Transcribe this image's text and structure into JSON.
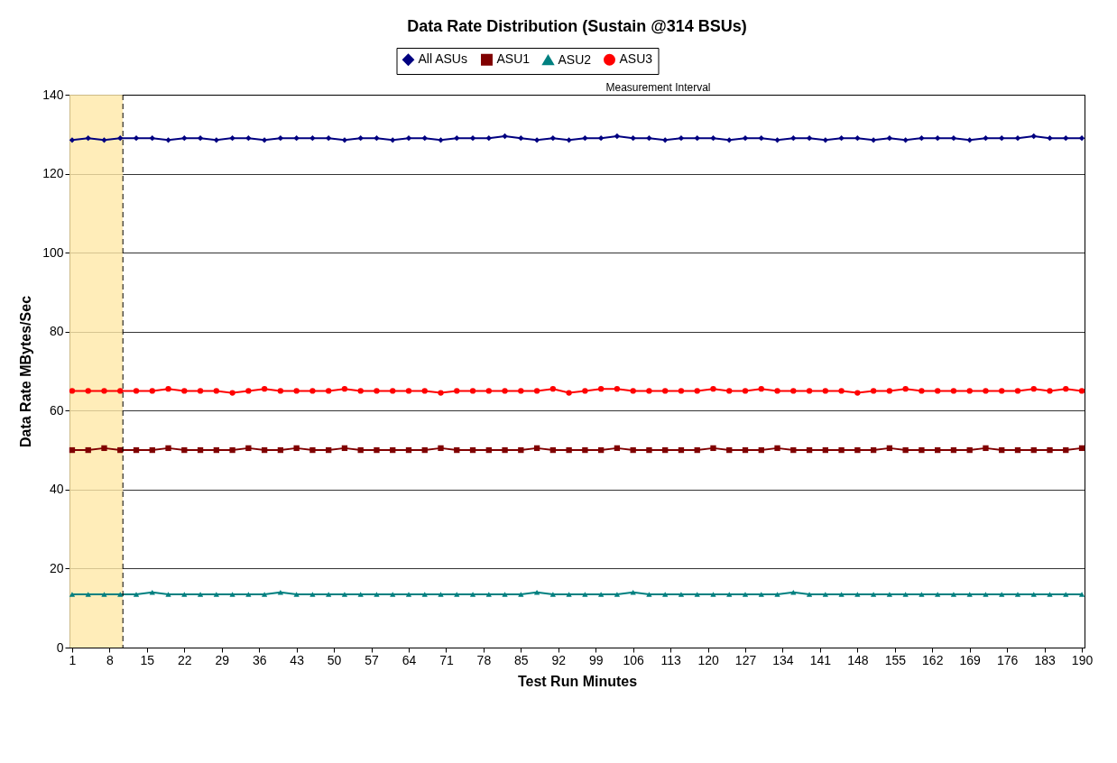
{
  "chart_data": {
    "type": "line",
    "title": "Data Rate Distribution (Sustain @314 BSUs)",
    "xlabel": "Test Run Minutes",
    "ylabel": "Data Rate MBytes/Sec",
    "x": [
      1,
      4,
      7,
      10,
      13,
      16,
      19,
      22,
      25,
      28,
      31,
      34,
      37,
      40,
      43,
      46,
      49,
      52,
      55,
      58,
      61,
      64,
      67,
      70,
      73,
      76,
      79,
      82,
      85,
      88,
      91,
      94,
      97,
      100,
      103,
      106,
      109,
      112,
      115,
      118,
      121,
      124,
      127,
      130,
      133,
      136,
      139,
      142,
      145,
      148,
      151,
      154,
      157,
      160,
      163,
      166,
      169,
      172,
      175,
      178,
      181,
      184,
      187,
      190
    ],
    "series": [
      {
        "name": "All ASUs",
        "color": "#000080",
        "marker": "diamond",
        "values": [
          128.5,
          129,
          128.5,
          129,
          129,
          129,
          128.5,
          129,
          129,
          128.5,
          129,
          129,
          128.5,
          129,
          129,
          129,
          129,
          128.5,
          129,
          129,
          128.5,
          129,
          129,
          128.5,
          129,
          129,
          129,
          129.5,
          129,
          128.5,
          129,
          128.5,
          129,
          129,
          129.5,
          129,
          129,
          128.5,
          129,
          129,
          129,
          128.5,
          129,
          129,
          128.5,
          129,
          129,
          128.5,
          129,
          129,
          128.5,
          129,
          128.5,
          129,
          129,
          129,
          128.5,
          129,
          129,
          129,
          129.5,
          129,
          129,
          129
        ]
      },
      {
        "name": "ASU1",
        "color": "#800000",
        "marker": "square",
        "values": [
          50,
          50,
          50.5,
          50,
          50,
          50,
          50.5,
          50,
          50,
          50,
          50,
          50.5,
          50,
          50,
          50.5,
          50,
          50,
          50.5,
          50,
          50,
          50,
          50,
          50,
          50.5,
          50,
          50,
          50,
          50,
          50,
          50.5,
          50,
          50,
          50,
          50,
          50.5,
          50,
          50,
          50,
          50,
          50,
          50.5,
          50,
          50,
          50,
          50.5,
          50,
          50,
          50,
          50,
          50,
          50,
          50.5,
          50,
          50,
          50,
          50,
          50,
          50.5,
          50,
          50,
          50,
          50,
          50,
          50.5
        ]
      },
      {
        "name": "ASU2",
        "color": "#008080",
        "marker": "triangle",
        "values": [
          13.5,
          13.5,
          13.5,
          13.5,
          13.5,
          14,
          13.5,
          13.5,
          13.5,
          13.5,
          13.5,
          13.5,
          13.5,
          14,
          13.5,
          13.5,
          13.5,
          13.5,
          13.5,
          13.5,
          13.5,
          13.5,
          13.5,
          13.5,
          13.5,
          13.5,
          13.5,
          13.5,
          13.5,
          14,
          13.5,
          13.5,
          13.5,
          13.5,
          13.5,
          14,
          13.5,
          13.5,
          13.5,
          13.5,
          13.5,
          13.5,
          13.5,
          13.5,
          13.5,
          14,
          13.5,
          13.5,
          13.5,
          13.5,
          13.5,
          13.5,
          13.5,
          13.5,
          13.5,
          13.5,
          13.5,
          13.5,
          13.5,
          13.5,
          13.5,
          13.5,
          13.5,
          13.5
        ]
      },
      {
        "name": "ASU3",
        "color": "#ff0000",
        "marker": "circle",
        "values": [
          65,
          65,
          65,
          65,
          65,
          65,
          65.5,
          65,
          65,
          65,
          64.5,
          65,
          65.5,
          65,
          65,
          65,
          65,
          65.5,
          65,
          65,
          65,
          65,
          65,
          64.5,
          65,
          65,
          65,
          65,
          65,
          65,
          65.5,
          64.5,
          65,
          65.5,
          65.5,
          65,
          65,
          65,
          65,
          65,
          65.5,
          65,
          65,
          65.5,
          65,
          65,
          65,
          65,
          65,
          64.5,
          65,
          65,
          65.5,
          65,
          65,
          65,
          65,
          65,
          65,
          65,
          65.5,
          65,
          65.5,
          65
        ]
      }
    ],
    "xlim": [
      0.5,
      190.5
    ],
    "xticks": [
      1,
      8,
      15,
      22,
      29,
      36,
      43,
      50,
      57,
      64,
      71,
      78,
      85,
      92,
      99,
      106,
      113,
      120,
      127,
      134,
      141,
      148,
      155,
      162,
      169,
      176,
      183,
      190
    ],
    "ylim": [
      0,
      140
    ],
    "yticks": [
      0,
      20,
      40,
      60,
      80,
      100,
      120,
      140
    ],
    "bands": [
      {
        "axis": "x",
        "from": 0.5,
        "to": 10.5,
        "color": "#ffe9a8"
      }
    ],
    "ref_lines": [
      {
        "axis": "x",
        "value": 10.5,
        "color": "#000000",
        "line_style": "dashed"
      }
    ],
    "annotations": [
      "Measurement Interval"
    ],
    "grid": "y",
    "legend": "top",
    "line_style": "solid"
  }
}
